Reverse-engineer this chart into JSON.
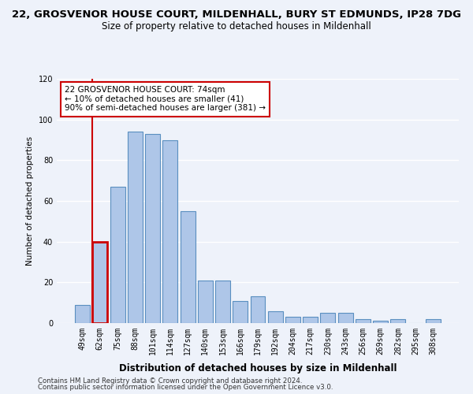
{
  "title": "22, GROSVENOR HOUSE COURT, MILDENHALL, BURY ST EDMUNDS, IP28 7DG",
  "subtitle": "Size of property relative to detached houses in Mildenhall",
  "xlabel": "Distribution of detached houses by size in Mildenhall",
  "ylabel": "Number of detached properties",
  "categories": [
    "49sqm",
    "62sqm",
    "75sqm",
    "88sqm",
    "101sqm",
    "114sqm",
    "127sqm",
    "140sqm",
    "153sqm",
    "166sqm",
    "179sqm",
    "192sqm",
    "204sqm",
    "217sqm",
    "230sqm",
    "243sqm",
    "256sqm",
    "269sqm",
    "282sqm",
    "295sqm",
    "308sqm"
  ],
  "values": [
    9,
    40,
    67,
    94,
    93,
    90,
    55,
    21,
    21,
    11,
    13,
    6,
    3,
    3,
    5,
    5,
    2,
    1,
    2,
    0,
    2
  ],
  "bar_color": "#aec6e8",
  "bar_edge_color": "#5a8fc0",
  "highlight_bar_index": 1,
  "highlight_color": "#cc0000",
  "ylim": [
    0,
    120
  ],
  "yticks": [
    0,
    20,
    40,
    60,
    80,
    100,
    120
  ],
  "annotation_title": "22 GROSVENOR HOUSE COURT: 74sqm",
  "annotation_line1": "← 10% of detached houses are smaller (41)",
  "annotation_line2": "90% of semi-detached houses are larger (381) →",
  "annotation_box_color": "#ffffff",
  "annotation_border_color": "#cc0000",
  "footer_line1": "Contains HM Land Registry data © Crown copyright and database right 2024.",
  "footer_line2": "Contains public sector information licensed under the Open Government Licence v3.0.",
  "background_color": "#eef2fa",
  "grid_color": "#ffffff",
  "title_fontsize": 9.5,
  "subtitle_fontsize": 8.5,
  "xlabel_fontsize": 8.5,
  "ylabel_fontsize": 7.5,
  "tick_fontsize": 7,
  "footer_fontsize": 6.2,
  "annotation_fontsize": 7.5
}
